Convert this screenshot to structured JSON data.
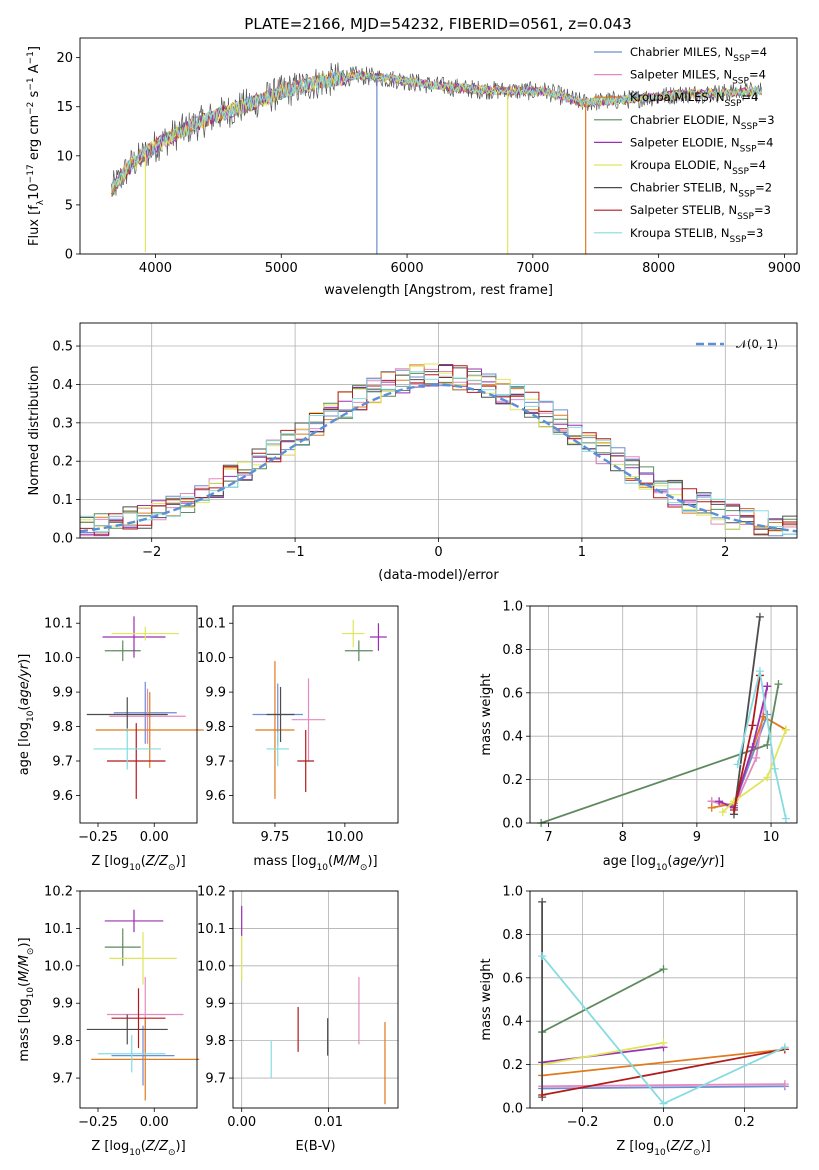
{
  "colors": {
    "c1": "#6f8dd0",
    "c2": "#e58ac0",
    "c3": "#df7a1e",
    "c4": "#5f8a5f",
    "c5": "#9b30b0",
    "c6": "#dfe65a",
    "c7": "#4d4d4d",
    "c8": "#b21b1b",
    "c9": "#85dce0",
    "normal": "#5b8fd8"
  },
  "chart_data": [
    {
      "type": "line",
      "title": "PLATE=2166, MJD=54232, FIBERID=0561, z=0.043",
      "xlabel": "wavelength [Angstrom, rest frame]",
      "ylabel": "Flux [fλ10⁻¹⁷ erg cm⁻² s⁻¹ A⁻¹]",
      "xlim": [
        3400,
        9100
      ],
      "ylim": [
        0,
        22
      ],
      "xticks": [
        "4000",
        "5000",
        "6000",
        "7000",
        "8000",
        "9000"
      ],
      "yticks": [
        "0",
        "5",
        "10",
        "15",
        "20"
      ],
      "grid": false,
      "legend_position": "top-right",
      "legend": [
        {
          "label": "Chabrier MILES, N",
          "sub": "SSP",
          "tail": "=4",
          "color_key": "c1"
        },
        {
          "label": "Salpeter MILES, N",
          "sub": "SSP",
          "tail": "=4",
          "color_key": "c2"
        },
        {
          "label": "Kroupa MILES, N",
          "sub": "SSP",
          "tail": "=4",
          "color_key": "c3"
        },
        {
          "label": "Chabrier ELODIE, N",
          "sub": "SSP",
          "tail": "=3",
          "color_key": "c4"
        },
        {
          "label": "Salpeter ELODIE, N",
          "sub": "SSP",
          "tail": "=4",
          "color_key": "c5"
        },
        {
          "label": "Kroupa ELODIE, N",
          "sub": "SSP",
          "tail": "=4",
          "color_key": "c6"
        },
        {
          "label": "Chabrier STELIB, N",
          "sub": "SSP",
          "tail": "=2",
          "color_key": "c7"
        },
        {
          "label": "Salpeter STELIB, N",
          "sub": "SSP",
          "tail": "=3",
          "color_key": "c8"
        },
        {
          "label": "Kroupa STELIB, N",
          "sub": "SSP",
          "tail": "=3",
          "color_key": "c9"
        }
      ],
      "continuum": [
        [
          3650,
          6.5
        ],
        [
          3800,
          9
        ],
        [
          4000,
          11
        ],
        [
          4200,
          12.5
        ],
        [
          4500,
          14.2
        ],
        [
          4800,
          15.5
        ],
        [
          5000,
          16.5
        ],
        [
          5300,
          17.5
        ],
        [
          5600,
          18.2
        ],
        [
          5900,
          17.8
        ],
        [
          6200,
          17.2
        ],
        [
          6500,
          16.8
        ],
        [
          6800,
          16.6
        ],
        [
          7100,
          16.6
        ],
        [
          7400,
          15.4
        ],
        [
          7800,
          15.8
        ],
        [
          8200,
          16.3
        ],
        [
          8500,
          16.4
        ],
        [
          8800,
          16.6
        ]
      ],
      "drop_lines": [
        {
          "x": 3920,
          "ybottom": 0.2,
          "color_key": "c6"
        },
        {
          "x": 5760,
          "ybottom": 0.0,
          "color_key": "c1"
        },
        {
          "x": 6800,
          "ybottom": 0.0,
          "color_key": "c6"
        },
        {
          "x": 7420,
          "ybottom": 0.0,
          "color_key": "c3"
        }
      ]
    },
    {
      "type": "histogram",
      "xlabel": "(data-model)/error",
      "ylabel": "Normed distribution",
      "xlim": [
        -2.5,
        2.5
      ],
      "ylim": [
        0,
        0.56
      ],
      "xticks": [
        -2,
        -1,
        0,
        1,
        2
      ],
      "xtick_labels": [
        "−2",
        "−1",
        "0",
        "1",
        "2"
      ],
      "yticks": [
        "0.0",
        "0.1",
        "0.2",
        "0.3",
        "0.4",
        "0.5"
      ],
      "grid": true,
      "legend": [
        {
          "label": "𝒩(0, 1)",
          "style": "dashed",
          "color_key": "normal"
        }
      ],
      "legend_position": "top-right",
      "bin_width": 0.1,
      "bin_start": -2.5
    },
    {
      "type": "scatter",
      "xlabel": "Z [log₁₀(Z/Z⊙)]",
      "ylabel": "age  [log₁₀(age/yr)]",
      "xlim": [
        -0.33,
        0.19
      ],
      "ylim": [
        9.52,
        10.15
      ],
      "xticks": [
        -0.25,
        0.0
      ],
      "xtick_labels": [
        "−0.25",
        "0.00"
      ],
      "yticks": [
        "9.6",
        "9.7",
        "9.8",
        "9.9",
        "10.0",
        "10.1"
      ],
      "grid": false,
      "points": [
        {
          "x": -0.04,
          "y": 9.84,
          "xerr": 0.14,
          "yerr": 0.09,
          "color_key": "c1"
        },
        {
          "x": -0.03,
          "y": 9.83,
          "xerr": 0.17,
          "yerr": 0.08,
          "color_key": "c2"
        },
        {
          "x": -0.02,
          "y": 9.79,
          "xerr": 0.24,
          "yerr": 0.11,
          "color_key": "c3"
        },
        {
          "x": -0.14,
          "y": 10.02,
          "xerr": 0.08,
          "yerr": 0.03,
          "color_key": "c4"
        },
        {
          "x": -0.09,
          "y": 10.06,
          "xerr": 0.14,
          "yerr": 0.06,
          "color_key": "c5"
        },
        {
          "x": -0.04,
          "y": 10.07,
          "xerr": 0.15,
          "yerr": 0.02,
          "color_key": "c6"
        },
        {
          "x": -0.12,
          "y": 9.835,
          "xerr": 0.18,
          "yerr": 0.05,
          "color_key": "c7"
        },
        {
          "x": -0.08,
          "y": 9.7,
          "xerr": 0.13,
          "yerr": 0.11,
          "color_key": "c8"
        },
        {
          "x": -0.12,
          "y": 9.735,
          "xerr": 0.15,
          "yerr": 0.06,
          "color_key": "c9"
        }
      ]
    },
    {
      "type": "scatter",
      "xlabel": "mass [log₁₀(M/M⊙)]",
      "ylabel": "",
      "xlim": [
        9.6,
        10.19
      ],
      "ylim": [
        9.52,
        10.15
      ],
      "xticks": [
        9.75,
        10.0
      ],
      "xtick_labels": [
        "9.75",
        "10.00"
      ],
      "yticks": [
        "9.6",
        "9.7",
        "9.8",
        "9.9",
        "10.0",
        "10.1"
      ],
      "grid": false,
      "points": [
        {
          "x": 9.76,
          "y": 9.835,
          "xerr": 0.09,
          "yerr": 0.09,
          "color_key": "c1"
        },
        {
          "x": 9.87,
          "y": 9.82,
          "xerr": 0.06,
          "yerr": 0.12,
          "color_key": "c2"
        },
        {
          "x": 9.75,
          "y": 9.79,
          "xerr": 0.07,
          "yerr": 0.2,
          "color_key": "c3"
        },
        {
          "x": 10.05,
          "y": 10.02,
          "xerr": 0.05,
          "yerr": 0.03,
          "color_key": "c4"
        },
        {
          "x": 10.12,
          "y": 10.06,
          "xerr": 0.03,
          "yerr": 0.04,
          "color_key": "c5"
        },
        {
          "x": 10.03,
          "y": 10.07,
          "xerr": 0.04,
          "yerr": 0.04,
          "color_key": "c6"
        },
        {
          "x": 9.77,
          "y": 9.835,
          "xerr": 0.05,
          "yerr": 0.08,
          "color_key": "c7"
        },
        {
          "x": 9.86,
          "y": 9.7,
          "xerr": 0.03,
          "yerr": 0.09,
          "color_key": "c8"
        },
        {
          "x": 9.76,
          "y": 9.735,
          "xerr": 0.04,
          "yerr": 0.05,
          "color_key": "c9"
        }
      ]
    },
    {
      "type": "line",
      "xlabel": "age  [log₁₀(age/yr)]",
      "ylabel": "mass weight",
      "xlim": [
        6.75,
        10.35
      ],
      "ylim": [
        0,
        1.0
      ],
      "xticks": [
        "7",
        "8",
        "9",
        "10"
      ],
      "yticks": [
        "0.0",
        "0.2",
        "0.4",
        "0.6",
        "0.8",
        "1.0"
      ],
      "grid": true,
      "series": [
        {
          "color_key": "c1",
          "x": [
            9.2,
            9.5,
            9.95
          ],
          "y": [
            0.1,
            0.08,
            0.5
          ]
        },
        {
          "color_key": "c2",
          "x": [
            9.2,
            9.5,
            9.8,
            9.95
          ],
          "y": [
            0.1,
            0.07,
            0.3,
            0.63
          ]
        },
        {
          "color_key": "c3",
          "x": [
            9.2,
            9.5,
            9.9,
            10.2
          ],
          "y": [
            0.07,
            0.09,
            0.49,
            0.43
          ]
        },
        {
          "color_key": "c4",
          "x": [
            6.9,
            9.95,
            10.1
          ],
          "y": [
            0.0,
            0.36,
            0.64
          ]
        },
        {
          "color_key": "c5",
          "x": [
            9.3,
            9.5,
            9.75,
            9.95
          ],
          "y": [
            0.1,
            0.07,
            0.35,
            0.63
          ]
        },
        {
          "color_key": "c6",
          "x": [
            9.35,
            9.5,
            9.95,
            10.2
          ],
          "y": [
            0.05,
            0.1,
            0.21,
            0.43
          ]
        },
        {
          "color_key": "c7",
          "x": [
            9.5,
            9.85
          ],
          "y": [
            0.04,
            0.95
          ]
        },
        {
          "color_key": "c8",
          "x": [
            9.5,
            9.75,
            9.85
          ],
          "y": [
            0.06,
            0.45,
            0.68
          ]
        },
        {
          "color_key": "c9",
          "x": [
            9.55,
            9.85,
            10.05,
            10.2
          ],
          "y": [
            0.27,
            0.7,
            0.25,
            0.02
          ]
        }
      ]
    },
    {
      "type": "scatter",
      "xlabel": "Z [log₁₀(Z/Z⊙)]",
      "ylabel": "mass [log₁₀(M/M⊙)]",
      "xlim": [
        -0.33,
        0.19
      ],
      "ylim": [
        9.62,
        10.2
      ],
      "xticks": [
        -0.25,
        0.0
      ],
      "xtick_labels": [
        "−0.25",
        "0.00"
      ],
      "yticks": [
        "9.7",
        "9.8",
        "9.9",
        "10.0",
        "10.1",
        "10.2"
      ],
      "grid": false,
      "points": [
        {
          "x": -0.05,
          "y": 9.76,
          "xerr": 0.14,
          "yerr": 0.08,
          "color_key": "c1"
        },
        {
          "x": -0.04,
          "y": 9.87,
          "xerr": 0.17,
          "yerr": 0.1,
          "color_key": "c2"
        },
        {
          "x": -0.04,
          "y": 9.75,
          "xerr": 0.24,
          "yerr": 0.11,
          "color_key": "c3"
        },
        {
          "x": -0.14,
          "y": 10.05,
          "xerr": 0.08,
          "yerr": 0.05,
          "color_key": "c4"
        },
        {
          "x": -0.09,
          "y": 10.12,
          "xerr": 0.13,
          "yerr": 0.03,
          "color_key": "c5"
        },
        {
          "x": -0.05,
          "y": 10.02,
          "xerr": 0.15,
          "yerr": 0.07,
          "color_key": "c6"
        },
        {
          "x": -0.12,
          "y": 9.83,
          "xerr": 0.18,
          "yerr": 0.04,
          "color_key": "c7"
        },
        {
          "x": -0.07,
          "y": 9.86,
          "xerr": 0.12,
          "yerr": 0.08,
          "color_key": "c8"
        },
        {
          "x": -0.1,
          "y": 9.765,
          "xerr": 0.15,
          "yerr": 0.05,
          "color_key": "c9"
        }
      ]
    },
    {
      "type": "scatter",
      "xlabel": "E(B-V)",
      "ylabel": "",
      "xlim": [
        -0.001,
        0.018
      ],
      "ylim": [
        9.62,
        10.2
      ],
      "xticks": [
        0.0,
        0.01
      ],
      "xtick_labels": [
        "0.00",
        "0.01"
      ],
      "yticks": [
        "9.7",
        "9.8",
        "9.9",
        "10.0",
        "10.1",
        "10.2"
      ],
      "grid": true,
      "points": [
        {
          "x": 0.0,
          "y": 10.12,
          "yerr": 0.04,
          "color_key": "c5"
        },
        {
          "x": 0.0,
          "y": 10.02,
          "yerr": 0.06,
          "color_key": "c6"
        },
        {
          "x": 0.0034,
          "y": 9.75,
          "yerr": 0.05,
          "color_key": "c9"
        },
        {
          "x": 0.0065,
          "y": 9.83,
          "yerr": 0.06,
          "color_key": "c8"
        },
        {
          "x": 0.0099,
          "y": 9.81,
          "yerr": 0.05,
          "color_key": "c7"
        },
        {
          "x": 0.0135,
          "y": 9.88,
          "yerr": 0.09,
          "color_key": "c2"
        },
        {
          "x": 0.0165,
          "y": 9.74,
          "yerr": 0.11,
          "color_key": "c3"
        }
      ]
    },
    {
      "type": "line",
      "xlabel": "Z [log₁₀(Z/Z⊙)]",
      "ylabel": "mass weight",
      "xlim": [
        -0.33,
        0.33
      ],
      "ylim": [
        0,
        1.0
      ],
      "xticks": [
        -0.2,
        0.0,
        0.2
      ],
      "xtick_labels": [
        "−0.2",
        "0.0",
        "0.2"
      ],
      "yticks": [
        "0.0",
        "0.2",
        "0.4",
        "0.6",
        "0.8",
        "1.0"
      ],
      "grid": true,
      "series": [
        {
          "color_key": "c1",
          "x": [
            -0.3,
            0.3
          ],
          "y": [
            0.09,
            0.1
          ]
        },
        {
          "color_key": "c2",
          "x": [
            -0.3,
            0.3
          ],
          "y": [
            0.1,
            0.11
          ]
        },
        {
          "color_key": "c3",
          "x": [
            -0.3,
            0.3
          ],
          "y": [
            0.15,
            0.27
          ]
        },
        {
          "color_key": "c4",
          "x": [
            -0.3,
            0.0
          ],
          "y": [
            0.35,
            0.64
          ]
        },
        {
          "color_key": "c5",
          "x": [
            -0.3,
            0.0
          ],
          "y": [
            0.21,
            0.28
          ]
        },
        {
          "color_key": "c6",
          "x": [
            -0.3,
            0.0
          ],
          "y": [
            0.2,
            0.3
          ]
        },
        {
          "color_key": "c7",
          "x": [
            -0.3,
            -0.3
          ],
          "y": [
            0.05,
            0.95
          ]
        },
        {
          "color_key": "c8",
          "x": [
            -0.3,
            0.3
          ],
          "y": [
            0.06,
            0.27
          ]
        },
        {
          "color_key": "c9",
          "x": [
            -0.3,
            0.0,
            0.3
          ],
          "y": [
            0.7,
            0.02,
            0.28
          ]
        }
      ]
    }
  ]
}
